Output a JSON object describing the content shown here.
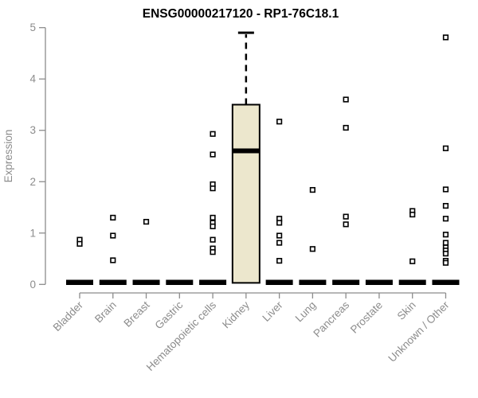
{
  "chart_data": {
    "type": "boxplot",
    "title": "ENSG00000217120 - RP1-76C18.1",
    "ylabel": "Expression",
    "xlabel": "",
    "ylim": [
      0,
      5
    ],
    "yticks": [
      0,
      1,
      2,
      3,
      4,
      5
    ],
    "grid": false,
    "legend": false,
    "categories": [
      "Bladder",
      "Brain",
      "Breast",
      "Gastric",
      "Hematopoietic cells",
      "Kidney",
      "Liver",
      "Lung",
      "Pancreas",
      "Prostate",
      "Skin",
      "Unknown / Other"
    ],
    "boxes": [
      {
        "category": "Bladder",
        "q1": 0,
        "median": 0,
        "q3": 0,
        "whisker_low": 0,
        "whisker_high": 0,
        "outliers": [
          0.87,
          0.79
        ]
      },
      {
        "category": "Brain",
        "q1": 0,
        "median": 0,
        "q3": 0,
        "whisker_low": 0,
        "whisker_high": 0,
        "outliers": [
          1.3,
          0.95,
          0.47
        ]
      },
      {
        "category": "Breast",
        "q1": 0,
        "median": 0,
        "q3": 0,
        "whisker_low": 0,
        "whisker_high": 0,
        "outliers": [
          1.22
        ]
      },
      {
        "category": "Gastric",
        "q1": 0,
        "median": 0,
        "q3": 0,
        "whisker_low": 0,
        "whisker_high": 0,
        "outliers": []
      },
      {
        "category": "Hematopoietic cells",
        "q1": 0,
        "median": 0,
        "q3": 0,
        "whisker_low": 0,
        "whisker_high": 0,
        "outliers": [
          2.93,
          2.53,
          1.95,
          1.87,
          1.3,
          1.2,
          1.13,
          0.87,
          0.7,
          0.63
        ]
      },
      {
        "category": "Kidney",
        "q1": 0.03,
        "median": 2.6,
        "q3": 3.5,
        "whisker_low": 0,
        "whisker_high": 4.9,
        "outliers": []
      },
      {
        "category": "Liver",
        "q1": 0,
        "median": 0,
        "q3": 0,
        "whisker_low": 0,
        "whisker_high": 0,
        "outliers": [
          3.17,
          1.28,
          1.2,
          0.95,
          0.81,
          0.46
        ]
      },
      {
        "category": "Lung",
        "q1": 0,
        "median": 0,
        "q3": 0,
        "whisker_low": 0,
        "whisker_high": 0,
        "outliers": [
          1.84,
          0.69
        ]
      },
      {
        "category": "Pancreas",
        "q1": 0,
        "median": 0,
        "q3": 0,
        "whisker_low": 0,
        "whisker_high": 0,
        "outliers": [
          3.6,
          3.05,
          1.32,
          1.17
        ]
      },
      {
        "category": "Prostate",
        "q1": 0,
        "median": 0,
        "q3": 0,
        "whisker_low": 0,
        "whisker_high": 0,
        "outliers": []
      },
      {
        "category": "Skin",
        "q1": 0,
        "median": 0,
        "q3": 0,
        "whisker_low": 0,
        "whisker_high": 0,
        "outliers": [
          1.43,
          1.36,
          0.45
        ]
      },
      {
        "category": "Unknown / Other",
        "q1": 0,
        "median": 0,
        "q3": 0,
        "whisker_low": 0,
        "whisker_high": 0,
        "outliers": [
          4.81,
          2.65,
          1.85,
          1.53,
          1.28,
          0.97,
          0.81,
          0.72,
          0.66,
          0.6,
          0.46,
          0.42
        ]
      }
    ],
    "colors": {
      "box_fill": "#ECE7CD",
      "box_border": "#000000",
      "median": "#000000",
      "whisker": "#000000",
      "outlier_fill": "#FFFFFF",
      "outlier_border": "#000000",
      "axis": "#8C8C8C",
      "tick_label": "#8C8C8C",
      "title": "#000000"
    }
  }
}
